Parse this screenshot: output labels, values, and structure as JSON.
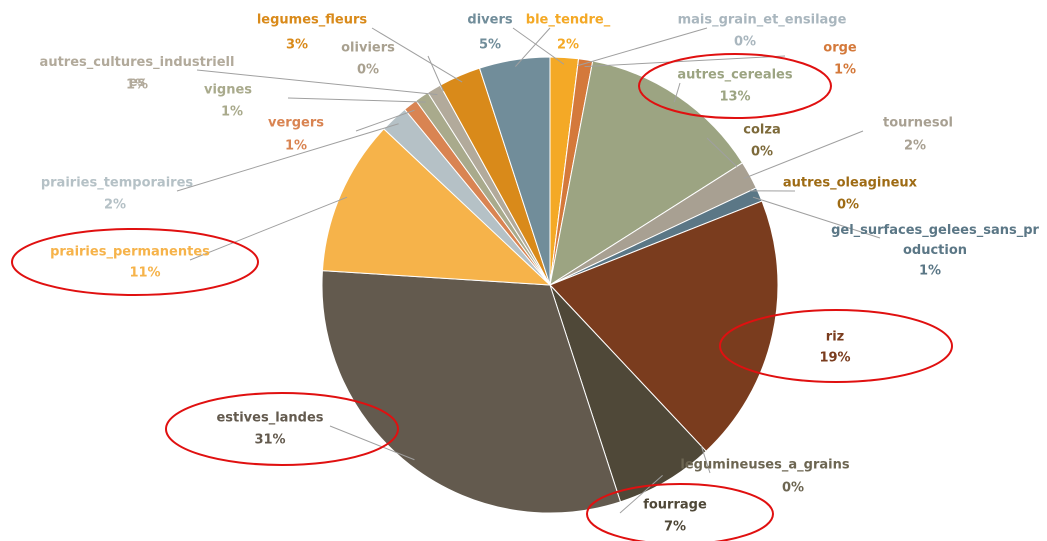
{
  "chart_data": {
    "type": "pie",
    "categories": [
      "ble_tendre_",
      "mais_grain_et_ensilage",
      "orge",
      "autres_cereales",
      "colza",
      "tournesol",
      "autres_oleagineux",
      "gel_surfaces_gelees_sans_production",
      "riz",
      "legumineuses_a_grains",
      "fourrage",
      "estives_landes",
      "prairies_permanentes",
      "prairies_temporaires",
      "vergers",
      "vignes",
      "autres_cultures_industrielles",
      "oliviers",
      "legumes_fleurs",
      "divers"
    ],
    "values": [
      2,
      0,
      1,
      13,
      0,
      2,
      0,
      1,
      19,
      0,
      7,
      31,
      11,
      2,
      1,
      1,
      1,
      0,
      3,
      5
    ],
    "value_labels": [
      "2%",
      "0%",
      "1%",
      "13%",
      "0%",
      "2%",
      "0%",
      "1%",
      "19%",
      "0%",
      "7%",
      "31%",
      "11%",
      "2%",
      "1%",
      "1%",
      "1%",
      "0%",
      "3%",
      "5%"
    ],
    "colors": [
      "#f4a926",
      "#a9b6be",
      "#d4793b",
      "#9ca482",
      "#7d6a3a",
      "#a8a092",
      "#9e6b14",
      "#5b7786",
      "#7a3c1e",
      "#6d6652",
      "#4f4838",
      "#635a4e",
      "#f6b34a",
      "#b5c1c6",
      "#d98452",
      "#a9aa8c",
      "#b2aa9b",
      "#a9a190",
      "#d98a1a",
      "#718d9a"
    ]
  }
}
